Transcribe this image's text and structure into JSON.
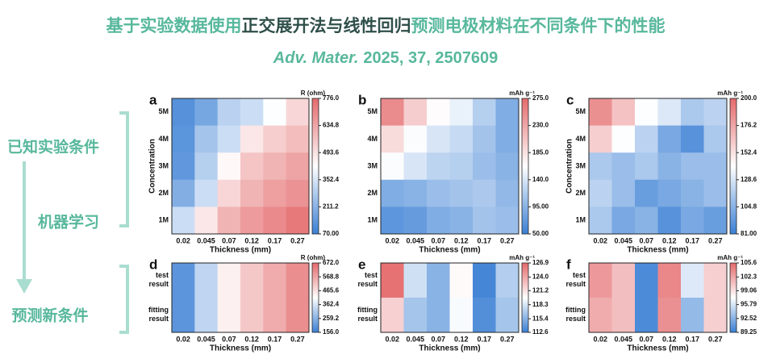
{
  "header": {
    "title": [
      "基于实验数据使用",
      "正交展开法与线性回归",
      "预测电极材料在不同条件下的性能"
    ],
    "journal": "Adv. Mater.",
    "citation": "2025, 37, 2507609"
  },
  "flow": {
    "known": "已知实验条件",
    "learning": "机器学习",
    "predict": "预测新条件"
  },
  "chart_data": [
    {
      "type": "heatmap",
      "panel": "a",
      "colormap": [
        "#3a7fd4",
        "#ffffff",
        "#e46a6c"
      ],
      "categories": [
        "0.02",
        "0.045",
        "0.07",
        "0.12",
        "0.17",
        "0.27"
      ],
      "rows": [
        "5M",
        "4M",
        "3M",
        "2M",
        "1M"
      ],
      "xlabel": "Thickness (mm)",
      "ylabel": "Concentration",
      "colorbar_label": "R (ohm)",
      "clim": [
        70,
        776
      ],
      "cticks": [
        {
          "value": 776,
          "label": "776.0"
        },
        {
          "value": 634.8,
          "label": "634.8"
        },
        {
          "value": 493.6,
          "label": "493.6"
        },
        {
          "value": 352.4,
          "label": "352.4"
        },
        {
          "value": 211.2,
          "label": "211.2"
        },
        {
          "value": 70,
          "label": "70.00"
        }
      ],
      "values": [
        [
          120,
          180,
          300,
          330,
          420,
          520
        ],
        [
          130,
          260,
          330,
          480,
          540,
          580
        ],
        [
          140,
          290,
          440,
          560,
          600,
          640
        ],
        [
          200,
          330,
          520,
          600,
          650,
          680
        ],
        [
          330,
          480,
          600,
          660,
          700,
          740
        ]
      ]
    },
    {
      "type": "heatmap",
      "panel": "b",
      "colormap": [
        "#3a7fd4",
        "#ffffff",
        "#e46a6c"
      ],
      "categories": [
        "0.02",
        "0.045",
        "0.07",
        "0.12",
        "0.17",
        "0.27"
      ],
      "rows": [
        "5M",
        "4M",
        "3M",
        "2M",
        "1M"
      ],
      "xlabel": "Thickness (mm)",
      "colorbar_label": "mAh g⁻¹",
      "clim": [
        50,
        275
      ],
      "cticks": [
        {
          "value": 275,
          "label": "275.0"
        },
        {
          "value": 230,
          "label": "230.0"
        },
        {
          "value": 185,
          "label": "185.0"
        },
        {
          "value": 140,
          "label": "140.0"
        },
        {
          "value": 95,
          "label": "95.00"
        },
        {
          "value": 50,
          "label": "50.00"
        }
      ],
      "values": [
        [
          250,
          200,
          165,
          150,
          120,
          90
        ],
        [
          190,
          160,
          140,
          130,
          110,
          90
        ],
        [
          160,
          140,
          125,
          120,
          105,
          95
        ],
        [
          90,
          95,
          105,
          110,
          115,
          100
        ],
        [
          70,
          75,
          90,
          95,
          110,
          105
        ]
      ]
    },
    {
      "type": "heatmap",
      "panel": "c",
      "colormap": [
        "#3a7fd4",
        "#ffffff",
        "#e46a6c"
      ],
      "categories": [
        "0.02",
        "0.045",
        "0.07",
        "0.12",
        "0.17",
        "0.27"
      ],
      "rows": [
        "5M",
        "4M",
        "3M",
        "2M",
        "1M"
      ],
      "xlabel": "Thickness (mm)",
      "ylabel": "Concentration",
      "colorbar_label": "mAh g⁻¹",
      "clim": [
        81,
        200
      ],
      "cticks": [
        {
          "value": 200,
          "label": "200.0"
        },
        {
          "value": 176.2,
          "label": "176.2"
        },
        {
          "value": 152.4,
          "label": "152.4"
        },
        {
          "value": 128.6,
          "label": "128.6"
        },
        {
          "value": 104.8,
          "label": "104.8"
        },
        {
          "value": 81,
          "label": "81.00"
        }
      ],
      "values": [
        [
          185,
          165,
          140,
          130,
          115,
          120
        ],
        [
          160,
          140,
          120,
          100,
          90,
          115
        ],
        [
          115,
          110,
          115,
          105,
          110,
          110
        ],
        [
          120,
          110,
          95,
          100,
          105,
          110
        ],
        [
          115,
          100,
          105,
          90,
          100,
          95
        ]
      ]
    },
    {
      "type": "heatmap",
      "panel": "d",
      "colormap": [
        "#3a7fd4",
        "#ffffff",
        "#e46a6c"
      ],
      "categories": [
        "0.02",
        "0.045",
        "0.07",
        "0.12",
        "0.17",
        "0.27"
      ],
      "rows": [
        "test result",
        "fitting result"
      ],
      "xlabel": "Thickness (mm)",
      "colorbar_label": "R (ohm)",
      "clim": [
        156,
        672
      ],
      "cticks": [
        {
          "value": 672,
          "label": "672.0"
        },
        {
          "value": 568.8,
          "label": "568.8"
        },
        {
          "value": 465.6,
          "label": "465.6"
        },
        {
          "value": 362.4,
          "label": "362.4"
        },
        {
          "value": 259.2,
          "label": "259.2"
        },
        {
          "value": 156,
          "label": "156.0"
        }
      ],
      "values": [
        [
          200,
          330,
          440,
          510,
          560,
          610
        ],
        [
          200,
          330,
          440,
          510,
          560,
          610
        ]
      ]
    },
    {
      "type": "heatmap",
      "panel": "e",
      "colormap": [
        "#3a7fd4",
        "#ffffff",
        "#e46a6c"
      ],
      "categories": [
        "0.02",
        "0.045",
        "0.07",
        "0.12",
        "0.17",
        "0.27"
      ],
      "rows": [
        "test result",
        "fitting result"
      ],
      "xlabel": "Thickness (mm)",
      "colorbar_label": "mAh g⁻¹",
      "clim": [
        112.6,
        126.9
      ],
      "cticks": [
        126.9,
        {
          "value": 124,
          "label": "124.0"
        },
        121.2,
        118.3,
        115.4,
        112.6
      ],
      "values": [
        [
          126.5,
          118,
          115.5,
          120,
          113,
          117
        ],
        [
          122,
          116.5,
          115.5,
          119.5,
          113.5,
          116.5
        ]
      ]
    },
    {
      "type": "heatmap",
      "panel": "f",
      "colormap": [
        "#3a7fd4",
        "#ffffff",
        "#e46a6c"
      ],
      "categories": [
        "0.02",
        "0.045",
        "0.07",
        "0.12",
        "0.17",
        "0.27"
      ],
      "rows": [
        "test result",
        "fitting result"
      ],
      "xlabel": "Thickness (mm)",
      "colorbar_label": "mAh g⁻¹",
      "clim": [
        89.25,
        105.6
      ],
      "cticks": [
        105.6,
        102.3,
        99.06,
        95.79,
        92.52,
        89.25
      ],
      "values": [
        [
          103,
          101,
          90,
          104,
          96,
          100
        ],
        [
          102,
          101,
          90,
          103.5,
          93,
          100
        ]
      ]
    }
  ]
}
